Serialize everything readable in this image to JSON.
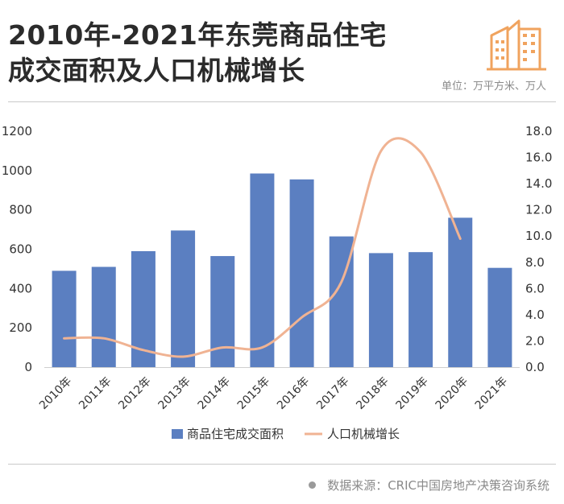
{
  "header": {
    "title_line1": "2010年-2021年东莞商品住宅",
    "title_line2": "成交面积及人口机械增长",
    "unit": "单位：万平方米、万人"
  },
  "footer": {
    "source": "数据来源：CRIC中国房地产决策咨询系统"
  },
  "chart_data": {
    "type": "bar",
    "categories": [
      "2010年",
      "2011年",
      "2012年",
      "2013年",
      "2014年",
      "2015年",
      "2016年",
      "2017年",
      "2018年",
      "2019年",
      "2020年",
      "2021年"
    ],
    "series": [
      {
        "name": "商品住宅成交面积",
        "type": "bar",
        "axis": "left",
        "values": [
          490,
          510,
          590,
          695,
          565,
          985,
          955,
          665,
          580,
          585,
          760,
          505
        ],
        "color": "#5b7fc1"
      },
      {
        "name": "人口机械增长",
        "type": "line",
        "axis": "right",
        "values": [
          2.2,
          2.2,
          1.3,
          0.8,
          1.5,
          1.5,
          3.8,
          6.5,
          16.5,
          16.4,
          9.8,
          null
        ],
        "color": "#f0b393"
      }
    ],
    "y_left": {
      "min": 0,
      "max": 1200,
      "ticks": [
        "0",
        "200",
        "400",
        "600",
        "800",
        "1000",
        "1200"
      ]
    },
    "y_right": {
      "min": 0,
      "max": 18,
      "ticks": [
        "0.0",
        "2.0",
        "4.0",
        "6.0",
        "8.0",
        "10.0",
        "12.0",
        "14.0",
        "16.0",
        "18.0"
      ]
    },
    "legend_position": "bottom",
    "grid": false
  }
}
